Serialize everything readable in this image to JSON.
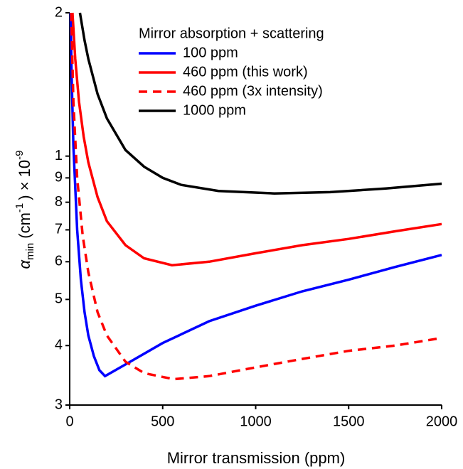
{
  "chart_data": {
    "type": "line",
    "x_label": "Mirror transmission (ppm)",
    "y_label": {
      "symbol": "α",
      "subscript": "min",
      "unit_open": "(cm",
      "unit_exp": "-1",
      "unit_close": ") × 10",
      "scale_exp": "-9"
    },
    "xlim": [
      0,
      2000
    ],
    "xticks": [
      0,
      500,
      1000,
      1500,
      2000
    ],
    "ylim": [
      0.3,
      2
    ],
    "log_y": true,
    "yticks": [
      {
        "value": 0.3,
        "label": "3"
      },
      {
        "value": 0.4,
        "label": "4"
      },
      {
        "value": 0.5,
        "label": "5"
      },
      {
        "value": 0.6,
        "label": "6"
      },
      {
        "value": 0.7,
        "label": "7"
      },
      {
        "value": 0.8,
        "label": "8"
      },
      {
        "value": 0.9,
        "label": "9"
      },
      1,
      2
    ],
    "legend_title": "Mirror absorption + scattering",
    "legend_position": "upper right",
    "series": [
      {
        "name": "100 ppm",
        "color": "#0000ff",
        "dashed": false,
        "x": [
          5,
          10,
          20,
          40,
          60,
          80,
          100,
          130,
          160,
          190,
          300,
          500,
          750,
          1000,
          1250,
          1500,
          1750,
          2000
        ],
        "values": [
          2.0,
          1.5,
          1.05,
          0.7,
          0.55,
          0.47,
          0.42,
          0.38,
          0.355,
          0.345,
          0.365,
          0.405,
          0.45,
          0.485,
          0.52,
          0.55,
          0.585,
          0.62
        ]
      },
      {
        "name": "460 ppm (this work)",
        "color": "#ff0000",
        "dashed": false,
        "x": [
          15,
          30,
          50,
          75,
          100,
          150,
          200,
          300,
          400,
          550,
          750,
          1000,
          1250,
          1500,
          1750,
          2000
        ],
        "values": [
          2.0,
          1.6,
          1.3,
          1.1,
          0.97,
          0.82,
          0.73,
          0.65,
          0.61,
          0.59,
          0.6,
          0.625,
          0.65,
          0.67,
          0.695,
          0.72
        ]
      },
      {
        "name": "460 ppm (3x intensity)",
        "color": "#ff0000",
        "dashed": true,
        "x": [
          8,
          20,
          40,
          70,
          100,
          150,
          200,
          300,
          400,
          560,
          750,
          1000,
          1250,
          1500,
          1750,
          2000
        ],
        "values": [
          2.0,
          1.3,
          0.9,
          0.68,
          0.57,
          0.47,
          0.42,
          0.37,
          0.35,
          0.34,
          0.345,
          0.36,
          0.375,
          0.39,
          0.4,
          0.415
        ]
      },
      {
        "name": "1000 ppm",
        "color": "#000000",
        "dashed": false,
        "x": [
          55,
          80,
          100,
          150,
          200,
          300,
          400,
          500,
          600,
          800,
          1100,
          1400,
          1700,
          2000
        ],
        "values": [
          2.0,
          1.75,
          1.6,
          1.35,
          1.2,
          1.03,
          0.95,
          0.9,
          0.87,
          0.845,
          0.835,
          0.84,
          0.855,
          0.875
        ]
      }
    ]
  }
}
